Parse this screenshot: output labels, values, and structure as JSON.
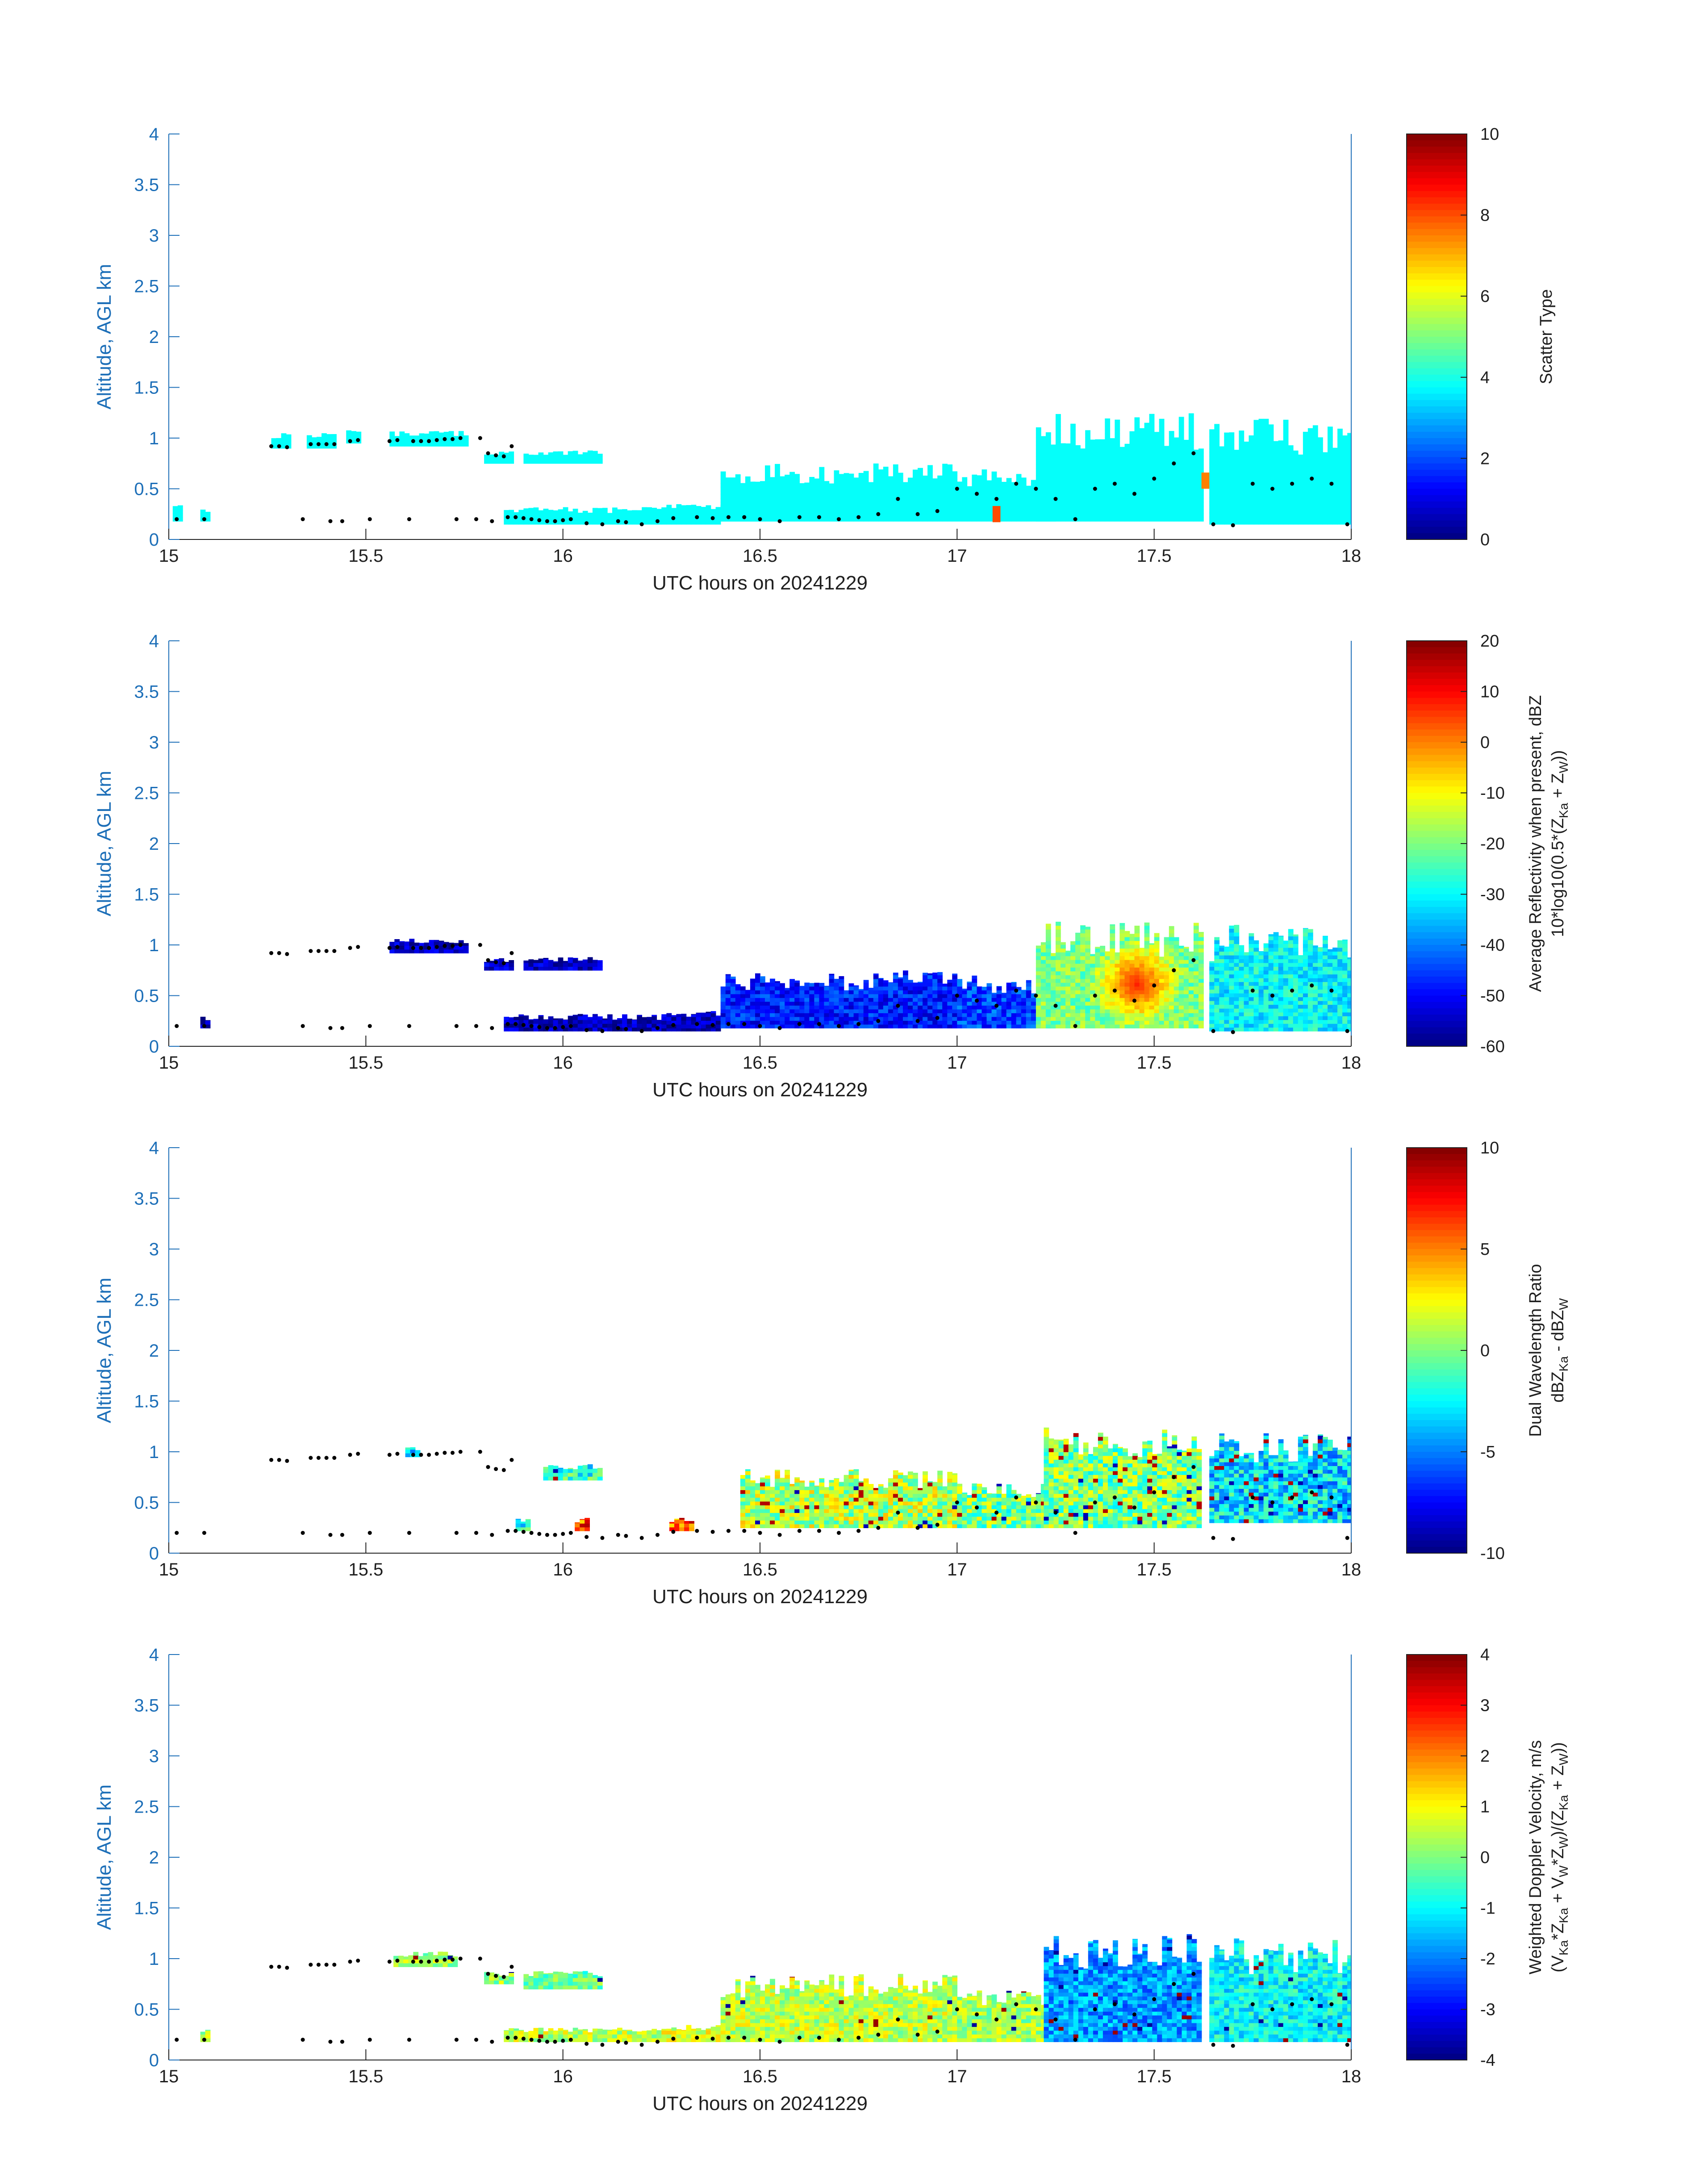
{
  "figure": {
    "date_label": "UTC hours on 20241229",
    "background": "#ffffff",
    "axis_color": "#1d6fb8",
    "colormap": "jet"
  },
  "chart_data": [
    {
      "type": "heatmap",
      "xlabel": "UTC hours on 20241229",
      "ylabel": "Altitude, AGL km",
      "xlim": [
        15,
        18
      ],
      "ylim": [
        0,
        4
      ],
      "xticks": [
        "15",
        "15.5",
        "16",
        "16.5",
        "17",
        "17.5",
        "18"
      ],
      "yticks": [
        "0",
        "0.5",
        "1",
        "1.5",
        "2",
        "2.5",
        "3",
        "3.5",
        "4"
      ],
      "colorbar": {
        "label": "Scatter Type",
        "range": [
          0,
          10
        ],
        "ticks": [
          "0",
          "2",
          "4",
          "6",
          "8",
          "10"
        ]
      },
      "field": "scatter_type",
      "cloud_layers": [
        {
          "x_start": 15.26,
          "x_end": 15.31,
          "bottom": 0.9,
          "top": 1.05,
          "value": 3.8
        },
        {
          "x_start": 15.35,
          "x_end": 15.42,
          "bottom": 0.9,
          "top": 1.05,
          "value": 3.8
        },
        {
          "x_start": 15.45,
          "x_end": 15.48,
          "bottom": 0.95,
          "top": 1.1,
          "value": 3.8
        },
        {
          "x_start": 15.56,
          "x_end": 15.75,
          "bottom": 0.92,
          "top": 1.07,
          "value": 3.8
        },
        {
          "x_start": 15.8,
          "x_end": 15.87,
          "bottom": 0.75,
          "top": 0.87,
          "value": 3.8
        },
        {
          "x_start": 15.9,
          "x_end": 16.1,
          "bottom": 0.75,
          "top": 0.88,
          "value": 3.8
        },
        {
          "x_start": 15.01,
          "x_end": 15.03,
          "bottom": 0.18,
          "top": 0.35,
          "value": 3.8
        },
        {
          "x_start": 15.08,
          "x_end": 15.1,
          "bottom": 0.18,
          "top": 0.3,
          "value": 3.8
        },
        {
          "x_start": 15.85,
          "x_end": 16.4,
          "bottom": 0.15,
          "top": 0.32,
          "value": 3.8
        },
        {
          "x_start": 16.25,
          "x_end": 16.5,
          "bottom": 0.18,
          "top": 0.35,
          "value": 3.8
        },
        {
          "x_start": 16.4,
          "x_end": 17.0,
          "bottom": 0.18,
          "top": 0.75,
          "value": 3.8
        },
        {
          "x_start": 17.0,
          "x_end": 17.25,
          "bottom": 0.18,
          "top": 0.7,
          "value": 3.8
        },
        {
          "x_start": 17.2,
          "x_end": 17.62,
          "bottom": 0.18,
          "top": 1.25,
          "value": 3.8
        },
        {
          "x_start": 17.64,
          "x_end": 18.0,
          "bottom": 0.15,
          "top": 1.2,
          "value": 3.8
        }
      ],
      "highlights": [
        {
          "x": 17.09,
          "y": 0.25,
          "value": 8
        },
        {
          "x": 17.62,
          "y": 0.58,
          "value": 7.5
        }
      ]
    },
    {
      "type": "heatmap",
      "xlabel": "UTC hours on 20241229",
      "ylabel": "Altitude, AGL km",
      "xlim": [
        15,
        18
      ],
      "ylim": [
        0,
        4
      ],
      "xticks": [
        "15",
        "15.5",
        "16",
        "16.5",
        "17",
        "17.5",
        "18"
      ],
      "yticks": [
        "0",
        "0.5",
        "1",
        "1.5",
        "2",
        "2.5",
        "3",
        "3.5",
        "4"
      ],
      "colorbar": {
        "label": "Average Reflectivity when present, dBZ",
        "label2": "10*log10(0.5*(Z",
        "sub_ka": "Ka",
        "sub_w": "W",
        "range": [
          -60,
          20
        ],
        "ticks": [
          "-60",
          "-50",
          "-40",
          "-30",
          "-20",
          "-10",
          "0",
          "10",
          "20"
        ]
      },
      "field": "reflectivity_dBZ",
      "cloud_layers": [
        {
          "x_start": 15.56,
          "x_end": 15.75,
          "bottom": 0.92,
          "top": 1.07,
          "value": -55
        },
        {
          "x_start": 15.8,
          "x_end": 15.87,
          "bottom": 0.75,
          "top": 0.87,
          "value": -55
        },
        {
          "x_start": 15.9,
          "x_end": 16.1,
          "bottom": 0.75,
          "top": 0.88,
          "value": -55
        },
        {
          "x_start": 15.08,
          "x_end": 15.1,
          "bottom": 0.18,
          "top": 0.3,
          "value": -58
        },
        {
          "x_start": 15.85,
          "x_end": 16.4,
          "bottom": 0.15,
          "top": 0.32,
          "value": -56
        },
        {
          "x_start": 16.25,
          "x_end": 16.5,
          "bottom": 0.18,
          "top": 0.35,
          "value": -56
        },
        {
          "x_start": 16.4,
          "x_end": 17.0,
          "bottom": 0.18,
          "top": 0.75,
          "value": -48
        },
        {
          "x_start": 17.0,
          "x_end": 17.25,
          "bottom": 0.18,
          "top": 0.7,
          "value": -45
        },
        {
          "x_start": 17.2,
          "x_end": 17.62,
          "bottom": 0.18,
          "top": 1.25,
          "value": -20
        },
        {
          "x_start": 17.64,
          "x_end": 18.0,
          "bottom": 0.15,
          "top": 1.2,
          "value": -30
        }
      ],
      "core": {
        "x": 17.45,
        "y": 0.6,
        "value": 8
      }
    },
    {
      "type": "heatmap",
      "xlabel": "UTC hours on 20241229",
      "ylabel": "Altitude, AGL km",
      "xlim": [
        15,
        18
      ],
      "ylim": [
        0,
        4
      ],
      "xticks": [
        "15",
        "15.5",
        "16",
        "16.5",
        "17",
        "17.5",
        "18"
      ],
      "yticks": [
        "0",
        "0.5",
        "1",
        "1.5",
        "2",
        "2.5",
        "3",
        "3.5",
        "4"
      ],
      "colorbar": {
        "label": "Dual Wavelength Ratio",
        "label2": "dBZ",
        "sub_ka": "Ka",
        "sub_w": "W",
        "range": [
          -10,
          10
        ],
        "ticks": [
          "-10",
          "-5",
          "0",
          "5",
          "10"
        ]
      },
      "field": "dual_wavelength_ratio",
      "cloud_layers": [
        {
          "x_start": 15.6,
          "x_end": 15.63,
          "bottom": 0.95,
          "top": 1.05,
          "value": -3
        },
        {
          "x_start": 15.95,
          "x_end": 16.1,
          "bottom": 0.72,
          "top": 0.88,
          "value": -2
        },
        {
          "x_start": 15.88,
          "x_end": 15.91,
          "bottom": 0.22,
          "top": 0.35,
          "value": -2
        },
        {
          "x_start": 16.03,
          "x_end": 16.06,
          "bottom": 0.22,
          "top": 0.35,
          "value": 6
        },
        {
          "x_start": 16.27,
          "x_end": 16.33,
          "bottom": 0.22,
          "top": 0.35,
          "value": 5
        },
        {
          "x_start": 16.45,
          "x_end": 17.0,
          "bottom": 0.25,
          "top": 0.85,
          "value": 1
        },
        {
          "x_start": 17.0,
          "x_end": 17.25,
          "bottom": 0.25,
          "top": 0.7,
          "value": 0
        },
        {
          "x_start": 17.22,
          "x_end": 17.62,
          "bottom": 0.25,
          "top": 1.25,
          "value": 0
        },
        {
          "x_start": 17.64,
          "x_end": 18.0,
          "bottom": 0.3,
          "top": 1.2,
          "value": -3
        }
      ]
    },
    {
      "type": "heatmap",
      "xlabel": "UTC hours on 20241229",
      "ylabel": "Altitude, AGL km",
      "xlim": [
        15,
        18
      ],
      "ylim": [
        0,
        4
      ],
      "xticks": [
        "15",
        "15.5",
        "16",
        "16.5",
        "17",
        "17.5",
        "18"
      ],
      "yticks": [
        "0",
        "0.5",
        "1",
        "1.5",
        "2",
        "2.5",
        "3",
        "3.5",
        "4"
      ],
      "colorbar": {
        "label": "Weighted Doppler Velocity, m/s",
        "label2": "(V",
        "sub_ka": "Ka",
        "sub_w": "W",
        "range": [
          -4,
          4
        ],
        "ticks": [
          "-4",
          "-3",
          "-2",
          "-1",
          "0",
          "1",
          "2",
          "3",
          "4"
        ]
      },
      "field": "doppler_velocity",
      "cloud_layers": [
        {
          "x_start": 15.57,
          "x_end": 15.73,
          "bottom": 0.92,
          "top": 1.07,
          "value": 0.3
        },
        {
          "x_start": 15.8,
          "x_end": 15.87,
          "bottom": 0.75,
          "top": 0.87,
          "value": 0.2
        },
        {
          "x_start": 15.9,
          "x_end": 16.1,
          "bottom": 0.7,
          "top": 0.88,
          "value": -0.2
        },
        {
          "x_start": 15.08,
          "x_end": 15.1,
          "bottom": 0.18,
          "top": 0.3,
          "value": 0.3
        },
        {
          "x_start": 15.85,
          "x_end": 16.4,
          "bottom": 0.18,
          "top": 0.32,
          "value": 0.5
        },
        {
          "x_start": 16.25,
          "x_end": 16.5,
          "bottom": 0.18,
          "top": 0.35,
          "value": 0.8
        },
        {
          "x_start": 16.4,
          "x_end": 17.0,
          "bottom": 0.18,
          "top": 0.85,
          "value": 0.5
        },
        {
          "x_start": 17.0,
          "x_end": 17.25,
          "bottom": 0.18,
          "top": 0.7,
          "value": 0.3
        },
        {
          "x_start": 17.22,
          "x_end": 17.62,
          "bottom": 0.18,
          "top": 1.25,
          "value": -1.8
        },
        {
          "x_start": 17.64,
          "x_end": 18.0,
          "bottom": 0.18,
          "top": 1.2,
          "value": -1.0
        }
      ]
    }
  ],
  "cloud_base_dots": [
    [
      15.02,
      0.2
    ],
    [
      15.09,
      0.2
    ],
    [
      15.26,
      0.92
    ],
    [
      15.28,
      0.92
    ],
    [
      15.3,
      0.91
    ],
    [
      15.34,
      0.2
    ],
    [
      15.36,
      0.94
    ],
    [
      15.38,
      0.94
    ],
    [
      15.4,
      0.94
    ],
    [
      15.42,
      0.94
    ],
    [
      15.41,
      0.18
    ],
    [
      15.44,
      0.18
    ],
    [
      15.46,
      0.97
    ],
    [
      15.48,
      0.98
    ],
    [
      15.51,
      0.2
    ],
    [
      15.56,
      0.97
    ],
    [
      15.58,
      0.98
    ],
    [
      15.61,
      0.2
    ],
    [
      15.62,
      0.97
    ],
    [
      15.64,
      0.97
    ],
    [
      15.66,
      0.97
    ],
    [
      15.68,
      0.98
    ],
    [
      15.7,
      0.99
    ],
    [
      15.72,
      0.99
    ],
    [
      15.74,
      1.0
    ],
    [
      15.73,
      0.2
    ],
    [
      15.78,
      0.2
    ],
    [
      15.79,
      1.0
    ],
    [
      15.81,
      0.85
    ],
    [
      15.83,
      0.83
    ],
    [
      15.85,
      0.82
    ],
    [
      15.87,
      0.92
    ],
    [
      15.82,
      0.18
    ],
    [
      15.86,
      0.22
    ],
    [
      15.88,
      0.22
    ],
    [
      15.9,
      0.21
    ],
    [
      15.92,
      0.2
    ],
    [
      15.94,
      0.19
    ],
    [
      15.96,
      0.18
    ],
    [
      15.98,
      0.18
    ],
    [
      16.0,
      0.19
    ],
    [
      16.02,
      0.2
    ],
    [
      16.06,
      0.16
    ],
    [
      16.1,
      0.15
    ],
    [
      16.14,
      0.18
    ],
    [
      16.16,
      0.17
    ],
    [
      16.2,
      0.15
    ],
    [
      16.24,
      0.18
    ],
    [
      16.28,
      0.21
    ],
    [
      16.34,
      0.22
    ],
    [
      16.38,
      0.21
    ],
    [
      16.42,
      0.22
    ],
    [
      16.46,
      0.22
    ],
    [
      16.5,
      0.2
    ],
    [
      16.55,
      0.18
    ],
    [
      16.6,
      0.22
    ],
    [
      16.65,
      0.22
    ],
    [
      16.7,
      0.2
    ],
    [
      16.75,
      0.22
    ],
    [
      16.8,
      0.25
    ],
    [
      16.85,
      0.4
    ],
    [
      16.9,
      0.25
    ],
    [
      16.95,
      0.28
    ],
    [
      17.0,
      0.5
    ],
    [
      17.05,
      0.45
    ],
    [
      17.1,
      0.4
    ],
    [
      17.15,
      0.55
    ],
    [
      17.2,
      0.5
    ],
    [
      17.25,
      0.4
    ],
    [
      17.3,
      0.2
    ],
    [
      17.35,
      0.5
    ],
    [
      17.4,
      0.55
    ],
    [
      17.45,
      0.45
    ],
    [
      17.5,
      0.6
    ],
    [
      17.55,
      0.75
    ],
    [
      17.6,
      0.85
    ],
    [
      17.65,
      0.15
    ],
    [
      17.7,
      0.14
    ],
    [
      17.75,
      0.55
    ],
    [
      17.8,
      0.5
    ],
    [
      17.85,
      0.55
    ],
    [
      17.9,
      0.6
    ],
    [
      17.95,
      0.55
    ],
    [
      17.99,
      0.15
    ]
  ]
}
